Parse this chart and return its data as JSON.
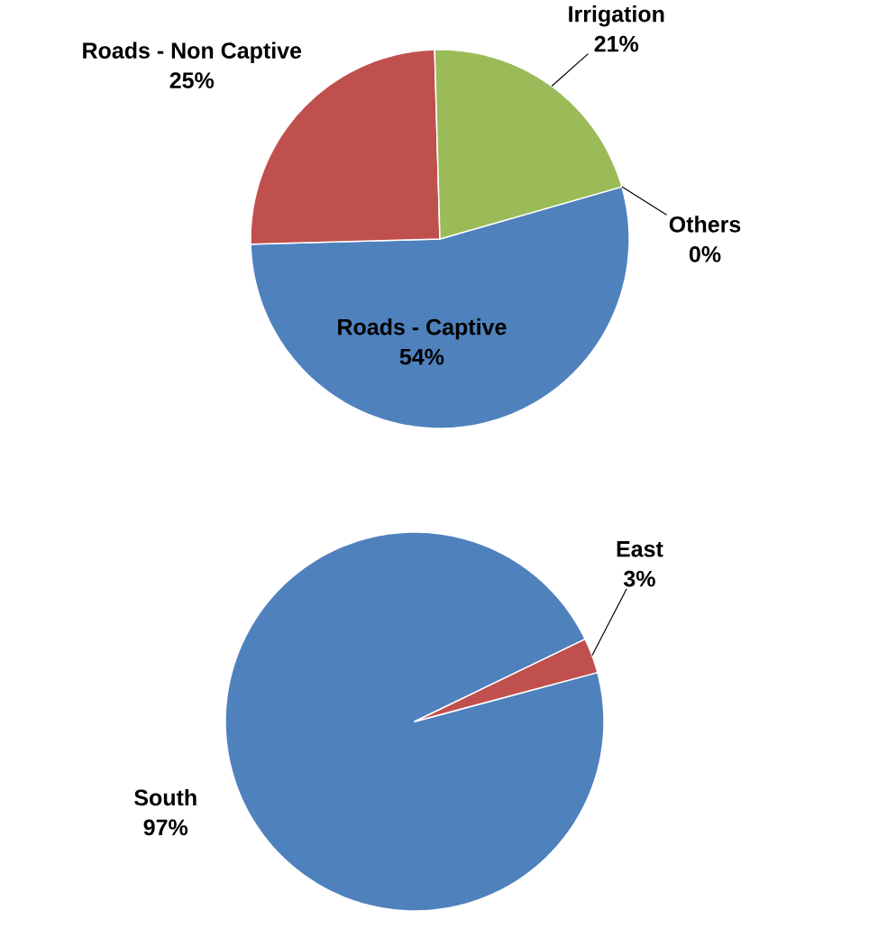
{
  "chart_data": [
    {
      "type": "pie",
      "categories": [
        "Roads - Captive",
        "Roads - Non Captive",
        "Irrigation",
        "Others"
      ],
      "values": [
        54,
        25,
        21,
        0
      ],
      "colors": [
        "#4f81bd",
        "#c0504d",
        "#9bbb59",
        null
      ],
      "value_labels": [
        "54%",
        "25%",
        "21%",
        "0%"
      ]
    },
    {
      "type": "pie",
      "categories": [
        "South",
        "East"
      ],
      "values": [
        97,
        3
      ],
      "colors": [
        "#4f81bd",
        "#c0504d"
      ],
      "value_labels": [
        "97%",
        "3%"
      ]
    }
  ]
}
